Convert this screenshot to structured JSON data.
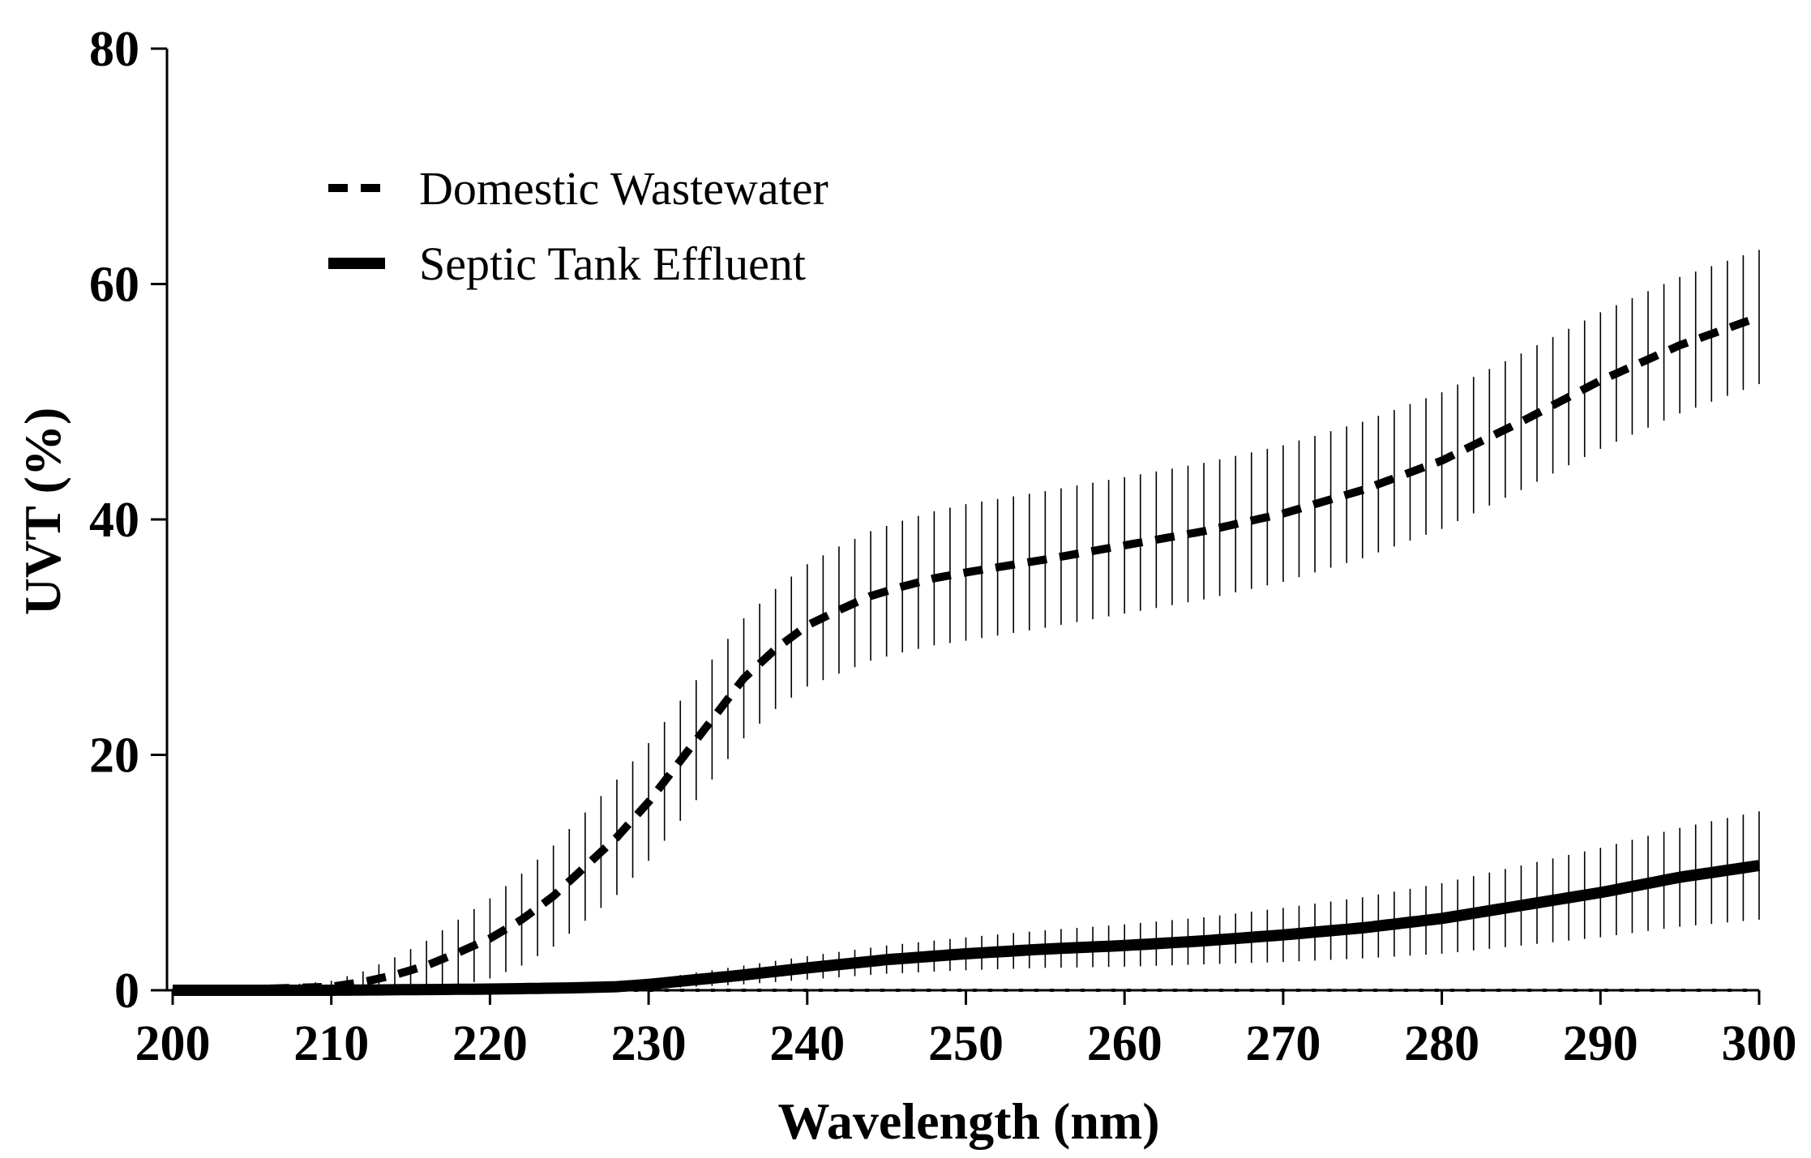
{
  "chart_data": {
    "type": "line",
    "title": "",
    "xlabel": "Wavelength (nm)",
    "ylabel": "UVT (%)",
    "xlim": [
      200,
      300
    ],
    "ylim": [
      0,
      80
    ],
    "xticks": [
      200,
      210,
      220,
      230,
      240,
      250,
      260,
      270,
      280,
      290,
      300
    ],
    "yticks": [
      0,
      20,
      40,
      60,
      80
    ],
    "grid": false,
    "legend_position": "top-left",
    "series": [
      {
        "name": "Domestic Wastewater",
        "style": "dashed",
        "x": [
          200,
          205,
          210,
          212,
          214,
          216,
          218,
          220,
          222,
          224,
          226,
          228,
          230,
          232,
          234,
          236,
          238,
          240,
          242,
          244,
          246,
          248,
          250,
          255,
          260,
          265,
          270,
          275,
          280,
          285,
          290,
          295,
          300
        ],
        "y": [
          0.0,
          0.1,
          0.3,
          0.7,
          1.3,
          2.1,
          3.2,
          4.4,
          6.0,
          8.0,
          10.5,
          13.0,
          16.0,
          19.5,
          23.0,
          26.5,
          29.0,
          31.0,
          32.3,
          33.5,
          34.3,
          35.0,
          35.5,
          36.6,
          37.8,
          39.0,
          40.5,
          42.5,
          45.0,
          48.3,
          51.8,
          54.8,
          57.2
        ],
        "error": [
          0.0,
          0.1,
          0.5,
          0.9,
          1.5,
          2.1,
          2.8,
          3.4,
          3.9,
          4.3,
          4.6,
          4.9,
          5.0,
          5.1,
          5.1,
          5.1,
          5.1,
          5.2,
          5.4,
          5.5,
          5.6,
          5.7,
          5.8,
          5.8,
          5.8,
          5.8,
          5.8,
          5.8,
          5.8,
          5.8,
          5.8,
          5.8,
          5.7
        ]
      },
      {
        "name": "Septic Tank Effluent",
        "style": "solid",
        "x": [
          200,
          210,
          220,
          225,
          228,
          230,
          233,
          236,
          240,
          245,
          250,
          255,
          260,
          265,
          270,
          275,
          280,
          285,
          290,
          295,
          300
        ],
        "y": [
          0.0,
          0.0,
          0.1,
          0.2,
          0.3,
          0.5,
          0.9,
          1.3,
          1.9,
          2.6,
          3.1,
          3.5,
          3.8,
          4.2,
          4.7,
          5.3,
          6.1,
          7.2,
          8.3,
          9.6,
          10.6
        ],
        "error": [
          0.0,
          0.0,
          0.1,
          0.2,
          0.3,
          0.4,
          0.6,
          0.8,
          1.0,
          1.2,
          1.4,
          1.6,
          1.8,
          2.0,
          2.3,
          2.6,
          3.0,
          3.4,
          3.8,
          4.2,
          4.6
        ]
      },
      {
        "name": "",
        "style": "dotted",
        "x": [
          200,
          300
        ],
        "y": [
          0,
          0
        ],
        "error": [
          0,
          0
        ]
      }
    ]
  }
}
